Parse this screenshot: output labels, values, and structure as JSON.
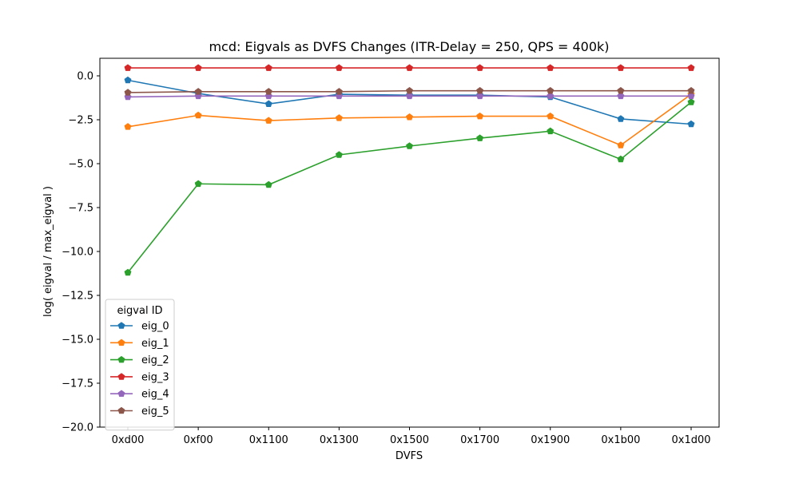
{
  "chart_data": {
    "type": "line",
    "title": "mcd: Eigvals as DVFS Changes (ITR-Delay = 250, QPS = 400k)",
    "xlabel": "DVFS",
    "ylabel": "log( eigval / max_eigval )",
    "categories": [
      "0xd00",
      "0xf00",
      "0x1100",
      "0x1300",
      "0x1500",
      "0x1700",
      "0x1900",
      "0x1b00",
      "0x1d00"
    ],
    "ylim": [
      -20,
      1
    ],
    "yticks": [
      0.0,
      -2.5,
      -5.0,
      -7.5,
      -10.0,
      -12.5,
      -15.0,
      -17.5,
      -20.0
    ],
    "ytick_labels": [
      "0.0",
      "−2.5",
      "−5.0",
      "−7.5",
      "−10.0",
      "−12.5",
      "−15.0",
      "−17.5",
      "−20.0"
    ],
    "grid": false,
    "legend": {
      "title": "eigval ID",
      "placement": "lower-left"
    },
    "marker": "pentagon",
    "series": [
      {
        "name": "eig_0",
        "color": "#1f77b4",
        "values": [
          -0.25,
          -1.0,
          -1.6,
          -1.05,
          -1.1,
          -1.1,
          -1.2,
          -2.45,
          -2.75
        ]
      },
      {
        "name": "eig_1",
        "color": "#ff7f0e",
        "values": [
          -2.9,
          -2.25,
          -2.55,
          -2.4,
          -2.35,
          -2.3,
          -2.3,
          -3.95,
          -1.05
        ]
      },
      {
        "name": "eig_2",
        "color": "#2ca02c",
        "values": [
          -11.2,
          -6.15,
          -6.2,
          -4.5,
          -4.0,
          -3.55,
          -3.15,
          -4.75,
          -1.5
        ]
      },
      {
        "name": "eig_3",
        "color": "#d62728",
        "values": [
          0.45,
          0.45,
          0.45,
          0.45,
          0.45,
          0.45,
          0.45,
          0.45,
          0.45
        ]
      },
      {
        "name": "eig_4",
        "color": "#9467bd",
        "values": [
          -1.2,
          -1.15,
          -1.15,
          -1.15,
          -1.15,
          -1.15,
          -1.15,
          -1.15,
          -1.15
        ]
      },
      {
        "name": "eig_5",
        "color": "#8c564b",
        "values": [
          -0.95,
          -0.9,
          -0.9,
          -0.9,
          -0.85,
          -0.85,
          -0.85,
          -0.85,
          -0.85
        ]
      }
    ]
  }
}
